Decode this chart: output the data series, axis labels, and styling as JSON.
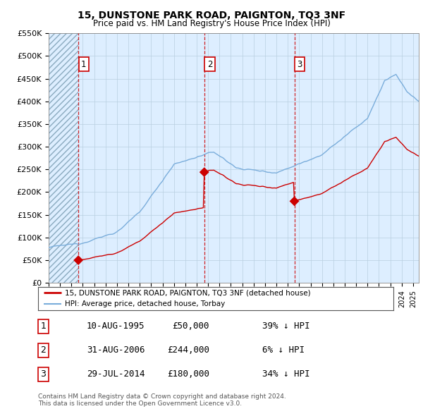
{
  "title": "15, DUNSTONE PARK ROAD, PAIGNTON, TQ3 3NF",
  "subtitle": "Price paid vs. HM Land Registry's House Price Index (HPI)",
  "ylim": [
    0,
    550000
  ],
  "yticks": [
    0,
    50000,
    100000,
    150000,
    200000,
    250000,
    300000,
    350000,
    400000,
    450000,
    500000,
    550000
  ],
  "ytick_labels": [
    "£0",
    "£50K",
    "£100K",
    "£150K",
    "£200K",
    "£250K",
    "£300K",
    "£350K",
    "£400K",
    "£450K",
    "£500K",
    "£550K"
  ],
  "xlim_start": 1993.0,
  "xlim_end": 2025.5,
  "sale_dates": [
    1995.608,
    2006.664,
    2014.575
  ],
  "sale_prices": [
    50000,
    244000,
    180000
  ],
  "sale_labels": [
    "1",
    "2",
    "3"
  ],
  "hpi_color": "#7aaddb",
  "sale_color": "#cc0000",
  "dashed_color": "#cc0000",
  "chart_bg_color": "#ddeeff",
  "hatch_color": "#b0c8e0",
  "grid_color": "#b8cfe0",
  "legend_label_sale": "15, DUNSTONE PARK ROAD, PAIGNTON, TQ3 3NF (detached house)",
  "legend_label_hpi": "HPI: Average price, detached house, Torbay",
  "table_rows": [
    [
      "1",
      "10-AUG-1995",
      "£50,000",
      "39% ↓ HPI"
    ],
    [
      "2",
      "31-AUG-2006",
      "£244,000",
      "6% ↓ HPI"
    ],
    [
      "3",
      "29-JUL-2014",
      "£180,000",
      "34% ↓ HPI"
    ]
  ],
  "footnote": "Contains HM Land Registry data © Crown copyright and database right 2024.\nThis data is licensed under the Open Government Licence v3.0."
}
